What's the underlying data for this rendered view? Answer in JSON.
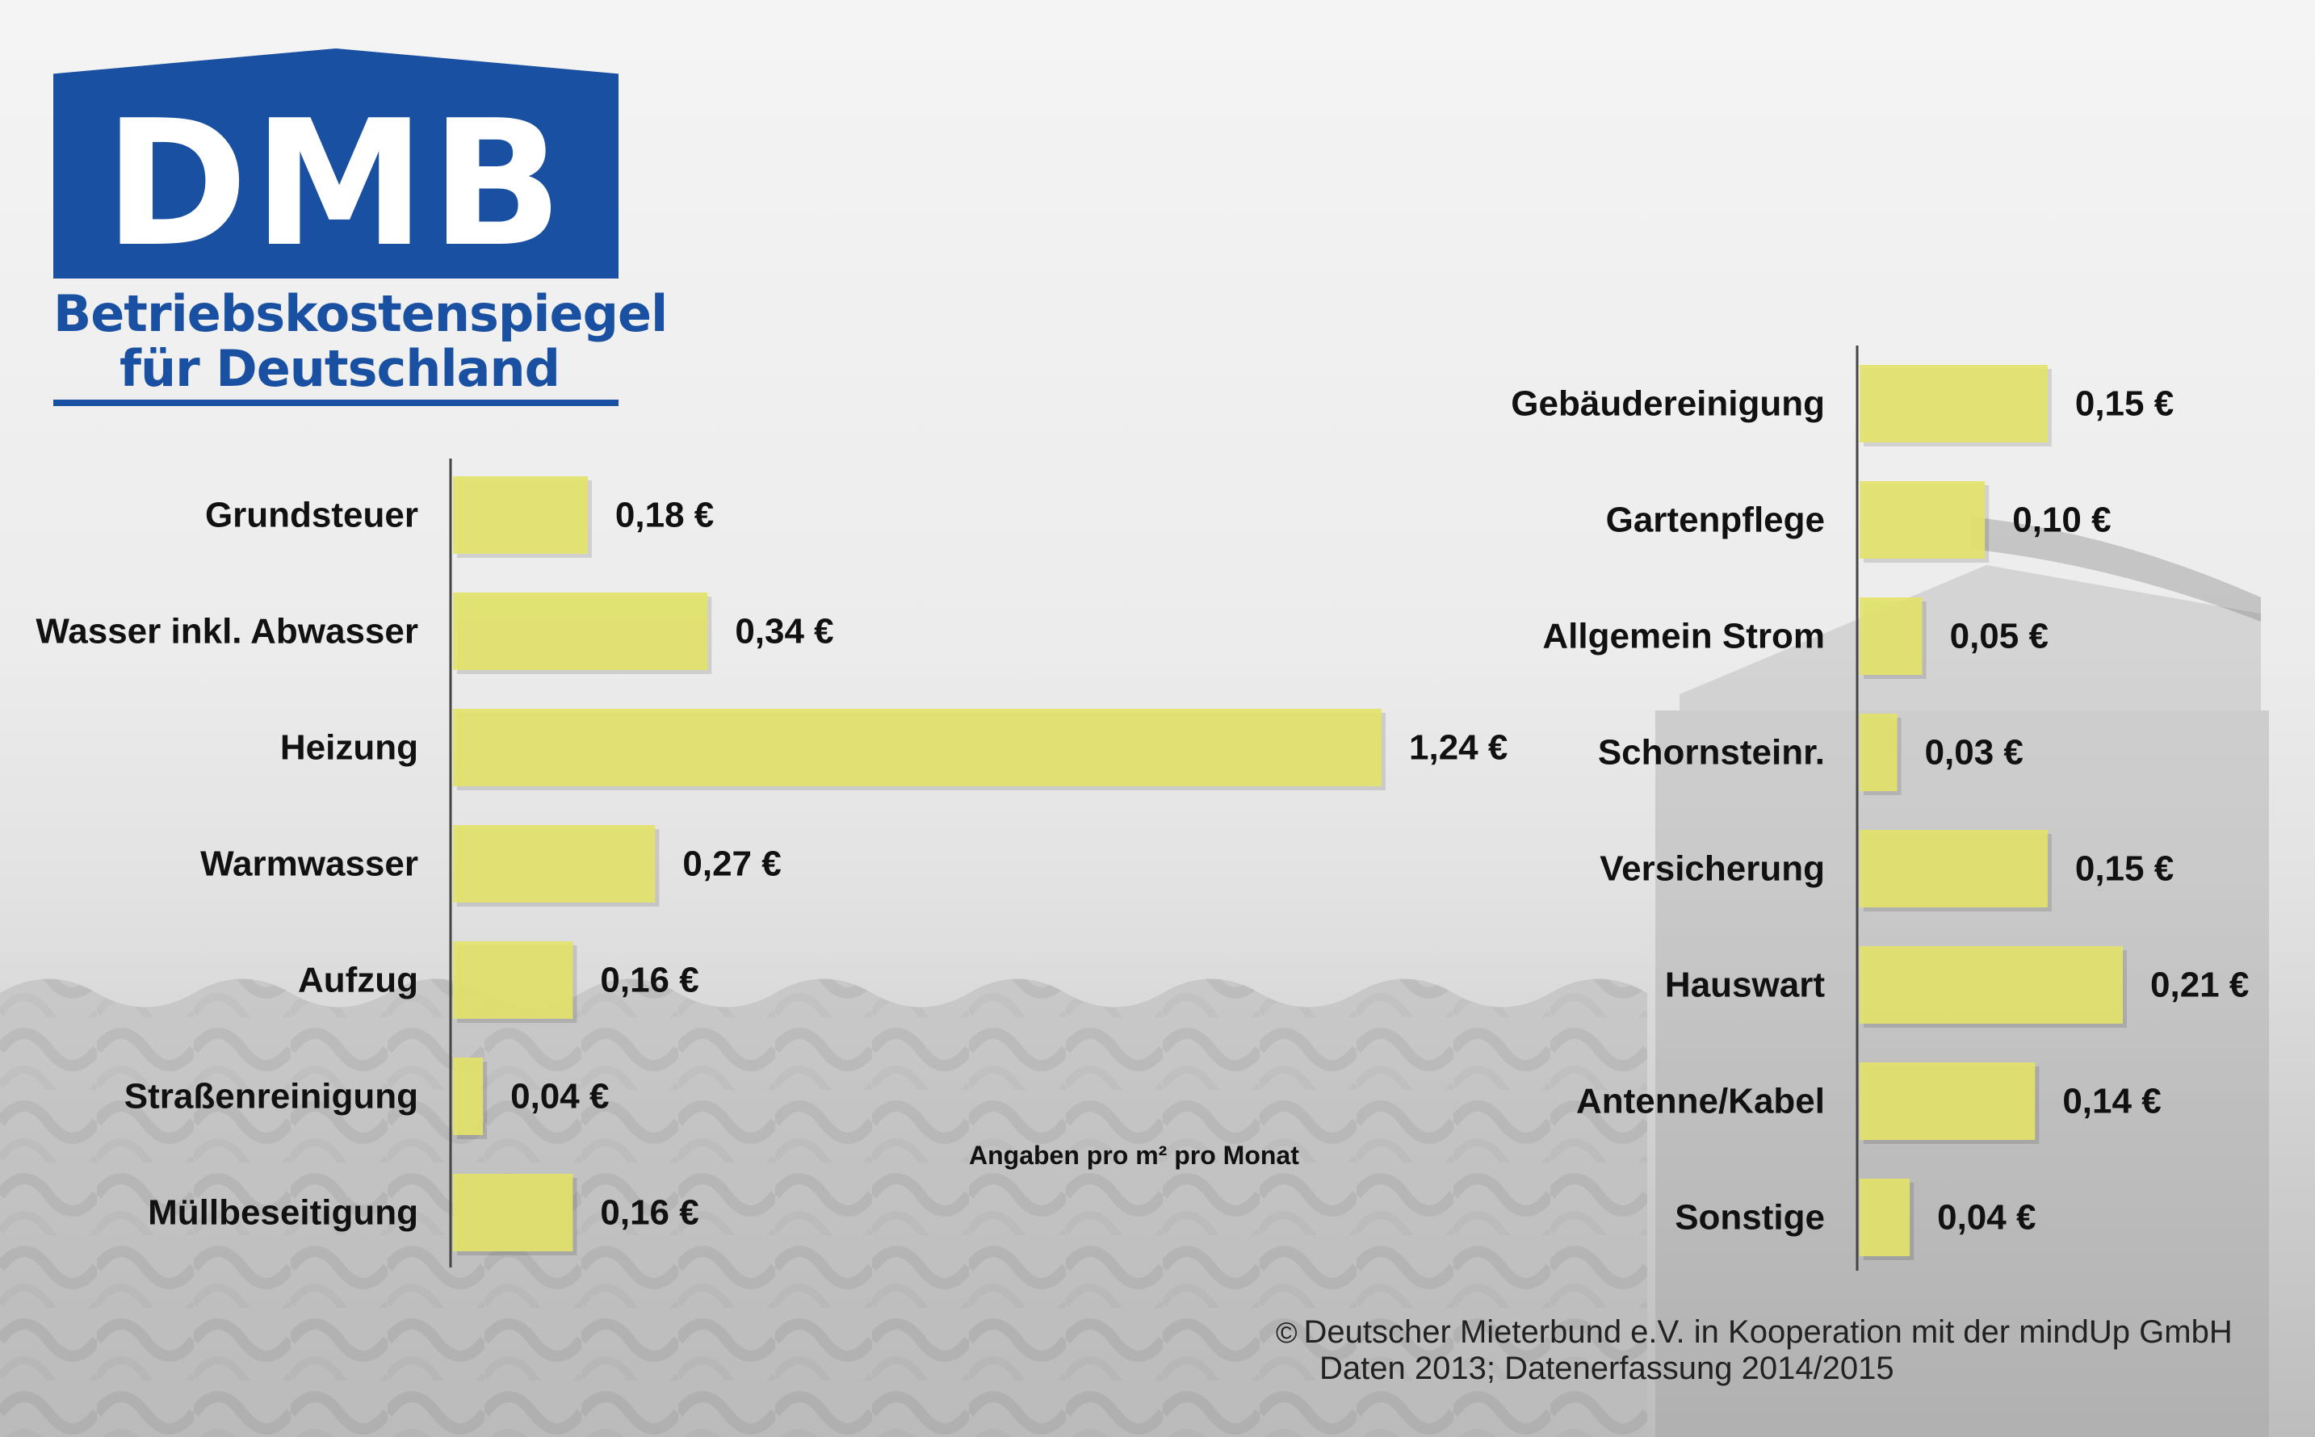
{
  "logo": {
    "text": "DMB",
    "subtitle_line1": "Betriebskostenspiegel",
    "subtitle_line2": "für Deutschland"
  },
  "note": "Angaben pro m² pro Monat",
  "credit": {
    "symbol": "©",
    "line1": "Deutscher Mieterbund e.V. in Kooperation mit der mindUp GmbH",
    "line2": "Daten 2013; Datenerfassung 2014/2015"
  },
  "colors": {
    "bar": "#e2e36a",
    "logo_blue": "#1a50a2",
    "axis": "#444444"
  },
  "chart_data": [
    {
      "type": "bar",
      "orientation": "horizontal",
      "categories": [
        "Grundsteuer",
        "Wasser inkl. Abwasser",
        "Heizung",
        "Warmwasser",
        "Aufzug",
        "Straßenreinigung",
        "Müllbeseitigung"
      ],
      "values": [
        0.18,
        0.34,
        1.24,
        0.27,
        0.16,
        0.04,
        0.16
      ],
      "value_labels": [
        "0,18 €",
        "0,34 €",
        "1,24 €",
        "0,27 €",
        "0,16 €",
        "0,04 €",
        "0,16 €"
      ],
      "xlim": [
        0,
        1.24
      ]
    },
    {
      "type": "bar",
      "orientation": "horizontal",
      "categories": [
        "Gebäudereinigung",
        "Gartenpflege",
        "Allgemein Strom",
        "Schornsteinr.",
        "Versicherung",
        "Hauswart",
        "Antenne/Kabel",
        "Sonstige"
      ],
      "values": [
        0.15,
        0.1,
        0.05,
        0.03,
        0.15,
        0.21,
        0.14,
        0.04
      ],
      "value_labels": [
        "0,15 €",
        "0,10 €",
        "0,05 €",
        "0,03 €",
        "0,15 €",
        "0,21 €",
        "0,14 €",
        "0,04 €"
      ],
      "xlim": [
        0,
        0.21
      ]
    }
  ]
}
